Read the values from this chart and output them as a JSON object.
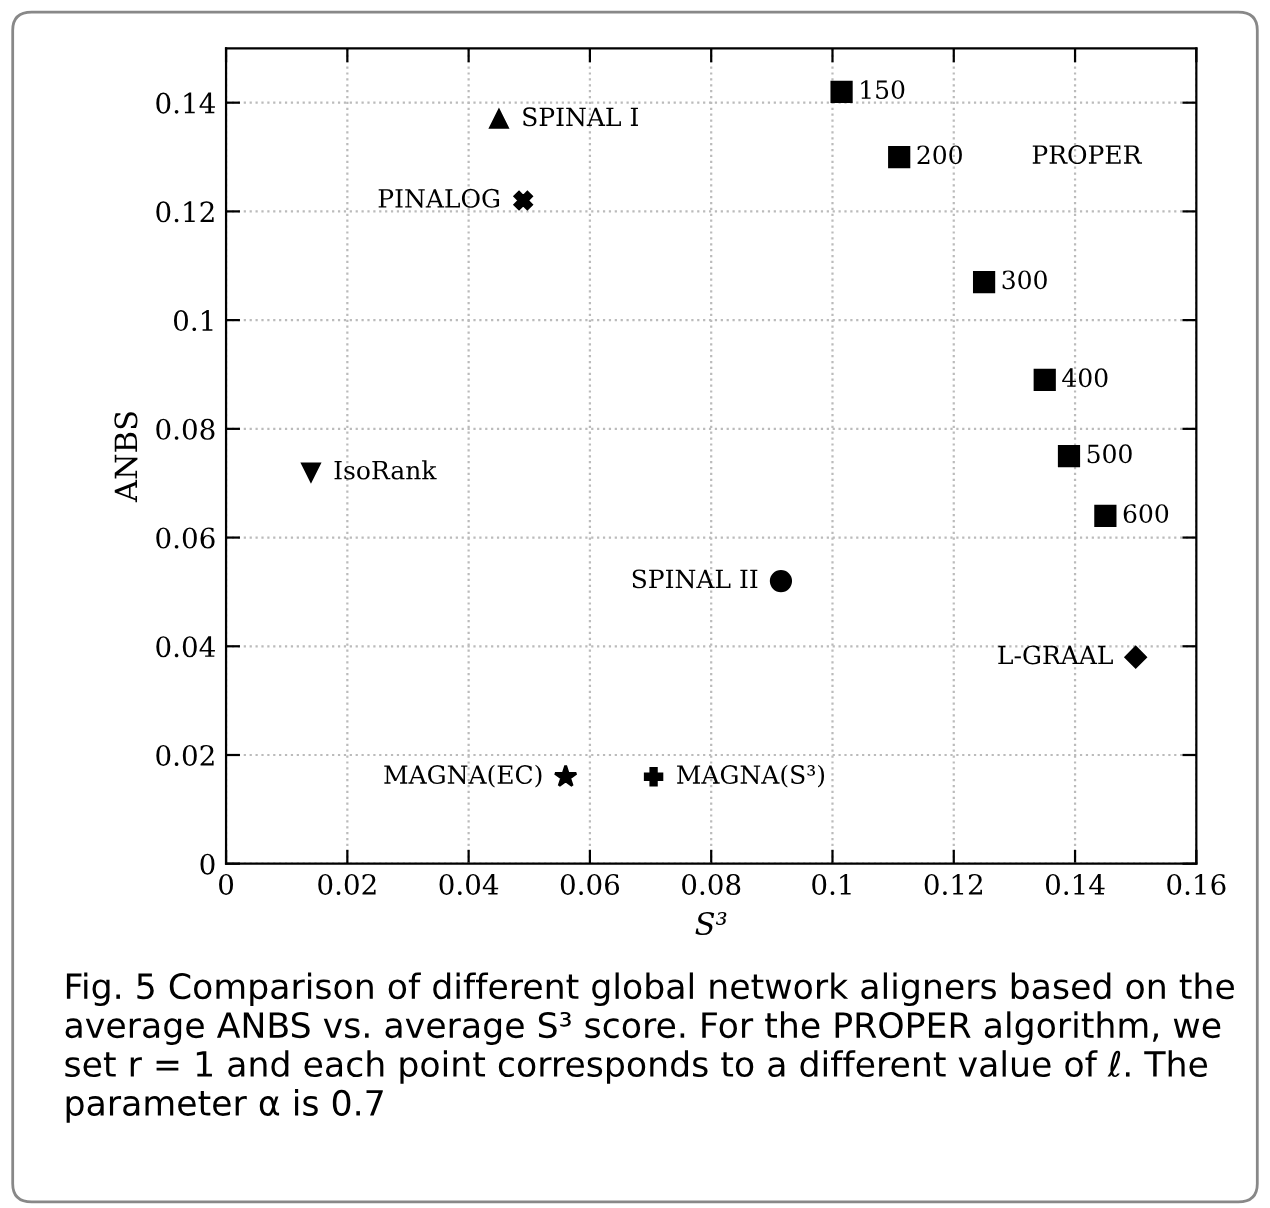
{
  "chart_data": {
    "type": "scatter",
    "xlabel": "S³",
    "ylabel": "ANBS",
    "xlim": [
      0,
      0.16
    ],
    "ylim": [
      0,
      0.15
    ],
    "xticks": [
      0,
      0.02,
      0.04,
      0.06,
      0.08,
      0.1,
      0.12,
      0.14,
      0.16
    ],
    "yticks": [
      0,
      0.02,
      0.04,
      0.06,
      0.08,
      0.1,
      0.12,
      0.14
    ],
    "grid": true,
    "legend": false,
    "series": [
      {
        "name": "SPINAL I",
        "color": "#000000",
        "marker": "triangle",
        "x": [
          0.045
        ],
        "values": [
          0.137
        ]
      },
      {
        "name": "PINALOG",
        "color": "#000000",
        "marker": "cross",
        "x": [
          0.049
        ],
        "values": [
          0.122
        ]
      },
      {
        "name": "IsoRank",
        "color": "#000000",
        "marker": "triangle_down",
        "x": [
          0.014
        ],
        "values": [
          0.072
        ]
      },
      {
        "color": "#000000",
        "marker": "square",
        "x": [
          0.1015,
          0.111,
          0.125,
          0.135,
          0.139,
          0.145
        ],
        "values": [
          0.142,
          0.13,
          0.107,
          0.089,
          0.075,
          0.064
        ]
      },
      {
        "name": "SPINAL II",
        "color": "#000000",
        "marker": "circle",
        "x": [
          0.0915
        ],
        "values": [
          0.052
        ]
      },
      {
        "name": "L-GRAAL",
        "color": "#000000",
        "marker": "diamond",
        "x": [
          0.15
        ],
        "values": [
          0.038
        ]
      },
      {
        "name": "MAGNA(EC)",
        "color": "#000000",
        "marker": "star",
        "x": [
          0.056
        ],
        "values": [
          0.016
        ]
      },
      {
        "name": "MAGNA(S³)",
        "color": "#000000",
        "marker": "plus",
        "x": [
          0.0705
        ],
        "values": [
          0.016
        ]
      }
    ],
    "annotations": [
      {
        "text": "150",
        "x": 0.1015,
        "y": 0.142
      },
      {
        "text": "200",
        "x": 0.111,
        "y": 0.13
      },
      {
        "text": "300",
        "x": 0.125,
        "y": 0.107
      },
      {
        "text": "400",
        "x": 0.135,
        "y": 0.089
      },
      {
        "text": "500",
        "x": 0.139,
        "y": 0.075
      },
      {
        "text": "600",
        "x": 0.145,
        "y": 0.064
      },
      "PROPER",
      "Fig. 5 Comparison of different global network aligners based on the average ANBS vs. average S³ score. For the PROPER algorithm, we set r = 1 and each point corresponds to a different value of ℓ. The parameter α is 0.7"
    ]
  }
}
